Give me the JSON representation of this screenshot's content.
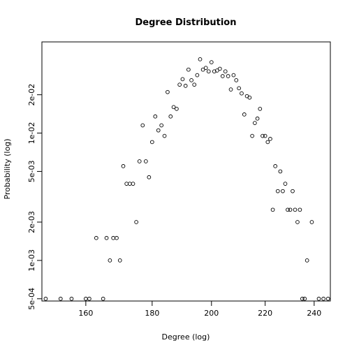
{
  "chart_data": {
    "type": "scatter",
    "title": "Degree Distribution",
    "xlabel": "Degree (log)",
    "ylabel": "Probability (log)",
    "x_scale": "log",
    "y_scale": "log",
    "xlim": [
      148,
      247
    ],
    "ylim": [
      0.00048,
      0.052
    ],
    "x_ticks": [
      {
        "value": 160,
        "label": "160"
      },
      {
        "value": 180,
        "label": "180"
      },
      {
        "value": 200,
        "label": "200"
      },
      {
        "value": 220,
        "label": "220"
      },
      {
        "value": 240,
        "label": "240"
      }
    ],
    "y_ticks": [
      {
        "value": 0.0005,
        "label": "5e-04"
      },
      {
        "value": 0.001,
        "label": "1e-03"
      },
      {
        "value": 0.002,
        "label": "2e-03"
      },
      {
        "value": 0.005,
        "label": "5e-03"
      },
      {
        "value": 0.01,
        "label": "1e-02"
      },
      {
        "value": 0.02,
        "label": "2e-02"
      }
    ],
    "grid": false,
    "legend": "none",
    "marker": "open-circle",
    "points": [
      {
        "x": 149,
        "y": 0.0005
      },
      {
        "x": 153,
        "y": 0.0005
      },
      {
        "x": 156,
        "y": 0.0005
      },
      {
        "x": 160,
        "y": 0.0005
      },
      {
        "x": 161,
        "y": 0.0005
      },
      {
        "x": 163,
        "y": 0.0015
      },
      {
        "x": 165,
        "y": 0.0005
      },
      {
        "x": 166,
        "y": 0.0015
      },
      {
        "x": 167,
        "y": 0.001
      },
      {
        "x": 168,
        "y": 0.0015
      },
      {
        "x": 169,
        "y": 0.0015
      },
      {
        "x": 170,
        "y": 0.001
      },
      {
        "x": 171,
        "y": 0.0055
      },
      {
        "x": 172,
        "y": 0.004
      },
      {
        "x": 173,
        "y": 0.004
      },
      {
        "x": 174,
        "y": 0.004
      },
      {
        "x": 175,
        "y": 0.002
      },
      {
        "x": 176,
        "y": 0.006
      },
      {
        "x": 177,
        "y": 0.0115
      },
      {
        "x": 178,
        "y": 0.006
      },
      {
        "x": 179,
        "y": 0.0045
      },
      {
        "x": 180,
        "y": 0.0085
      },
      {
        "x": 181,
        "y": 0.0135
      },
      {
        "x": 182,
        "y": 0.0105
      },
      {
        "x": 183,
        "y": 0.0115
      },
      {
        "x": 184,
        "y": 0.0095
      },
      {
        "x": 185,
        "y": 0.021
      },
      {
        "x": 186,
        "y": 0.0135
      },
      {
        "x": 187,
        "y": 0.016
      },
      {
        "x": 188,
        "y": 0.0155
      },
      {
        "x": 189,
        "y": 0.024
      },
      {
        "x": 190,
        "y": 0.0265
      },
      {
        "x": 191,
        "y": 0.0235
      },
      {
        "x": 192,
        "y": 0.0315
      },
      {
        "x": 193,
        "y": 0.026
      },
      {
        "x": 194,
        "y": 0.024
      },
      {
        "x": 195,
        "y": 0.0285
      },
      {
        "x": 196,
        "y": 0.038
      },
      {
        "x": 197,
        "y": 0.0315
      },
      {
        "x": 198,
        "y": 0.0325
      },
      {
        "x": 199,
        "y": 0.0305
      },
      {
        "x": 200,
        "y": 0.036
      },
      {
        "x": 201,
        "y": 0.0305
      },
      {
        "x": 202,
        "y": 0.031
      },
      {
        "x": 203,
        "y": 0.032
      },
      {
        "x": 204,
        "y": 0.028
      },
      {
        "x": 205,
        "y": 0.0305
      },
      {
        "x": 206,
        "y": 0.028
      },
      {
        "x": 207,
        "y": 0.022
      },
      {
        "x": 208,
        "y": 0.0285
      },
      {
        "x": 209,
        "y": 0.026
      },
      {
        "x": 210,
        "y": 0.0225
      },
      {
        "x": 211,
        "y": 0.0205
      },
      {
        "x": 212,
        "y": 0.014
      },
      {
        "x": 213,
        "y": 0.0195
      },
      {
        "x": 214,
        "y": 0.019
      },
      {
        "x": 215,
        "y": 0.0095
      },
      {
        "x": 216,
        "y": 0.012
      },
      {
        "x": 217,
        "y": 0.013
      },
      {
        "x": 218,
        "y": 0.0155
      },
      {
        "x": 219,
        "y": 0.0095
      },
      {
        "x": 220,
        "y": 0.0095
      },
      {
        "x": 221,
        "y": 0.0085
      },
      {
        "x": 222,
        "y": 0.009
      },
      {
        "x": 223,
        "y": 0.0025
      },
      {
        "x": 224,
        "y": 0.0055
      },
      {
        "x": 225,
        "y": 0.0035
      },
      {
        "x": 226,
        "y": 0.005
      },
      {
        "x": 227,
        "y": 0.0035
      },
      {
        "x": 228,
        "y": 0.004
      },
      {
        "x": 229,
        "y": 0.0025
      },
      {
        "x": 230,
        "y": 0.0025
      },
      {
        "x": 231,
        "y": 0.0035
      },
      {
        "x": 232,
        "y": 0.0025
      },
      {
        "x": 233,
        "y": 0.002
      },
      {
        "x": 234,
        "y": 0.0025
      },
      {
        "x": 235,
        "y": 0.0005
      },
      {
        "x": 236,
        "y": 0.0005
      },
      {
        "x": 237,
        "y": 0.001
      },
      {
        "x": 239,
        "y": 0.002
      },
      {
        "x": 242,
        "y": 0.0005
      },
      {
        "x": 244,
        "y": 0.0005
      },
      {
        "x": 246,
        "y": 0.0005
      }
    ]
  }
}
